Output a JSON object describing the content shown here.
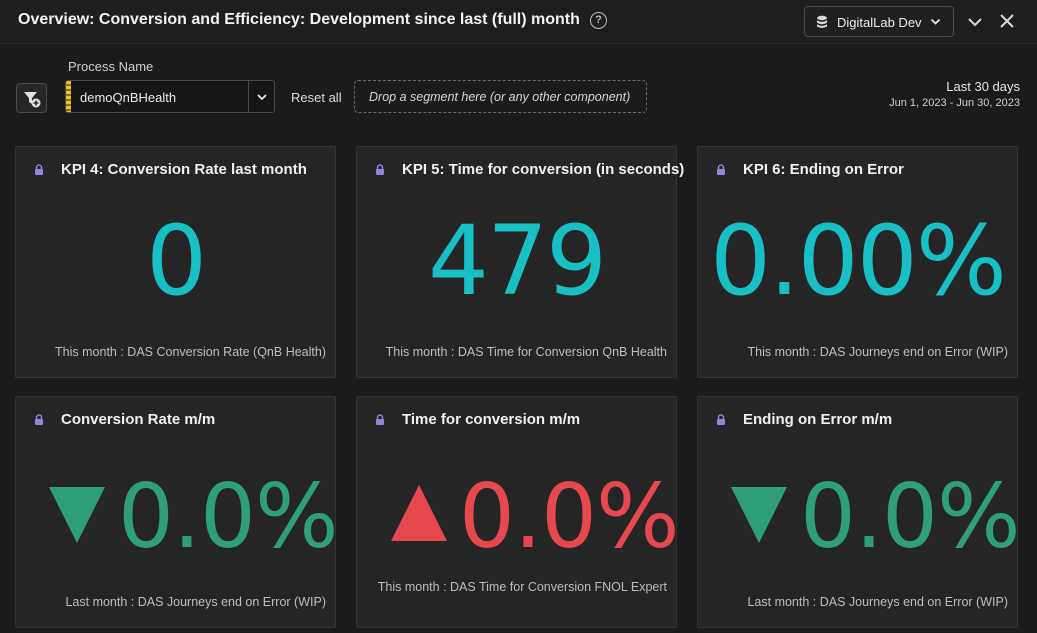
{
  "header": {
    "title": "Overview: Conversion and Efficiency: Development since last (full) month",
    "help_glyph": "?",
    "datasource": "DigitalLab Dev"
  },
  "filters": {
    "process_label": "Process Name",
    "process_value": "demoQnBHealth",
    "reset_label": "Reset all",
    "drop_zone": "Drop a segment here (or any other component)",
    "range_title": "Last 30 days",
    "range_dates": "Jun 1, 2023 - Jun 30, 2023"
  },
  "colors": {
    "kpi_value": "#18bfc4",
    "trend_down": "#2e9f77",
    "trend_up": "#e5484d",
    "lock": "#8e86d8"
  },
  "cards": [
    {
      "title": "KPI 4: Conversion Rate last month",
      "value": "0",
      "footer": "This month : DAS Conversion Rate (QnB Health)"
    },
    {
      "title": "KPI 5: Time for conversion (in seconds)",
      "value": "479",
      "footer": "This month : DAS Time for Conversion QnB Health"
    },
    {
      "title": "KPI 6: Ending on Error",
      "value": "0.00%",
      "footer": "This month : DAS Journeys end on Error (WIP)"
    },
    {
      "title": "Conversion Rate m/m",
      "value": "0.0%",
      "direction": "down",
      "footer": "Last month : DAS Journeys end on Error (WIP)"
    },
    {
      "title": "Time for conversion m/m",
      "value": "0.0%",
      "direction": "up",
      "footer": "This month : DAS Time for Conversion FNOL Expert"
    },
    {
      "title": "Ending on Error m/m",
      "value": "0.0%",
      "direction": "down",
      "footer": "Last month : DAS Journeys end on Error (WIP)"
    }
  ]
}
